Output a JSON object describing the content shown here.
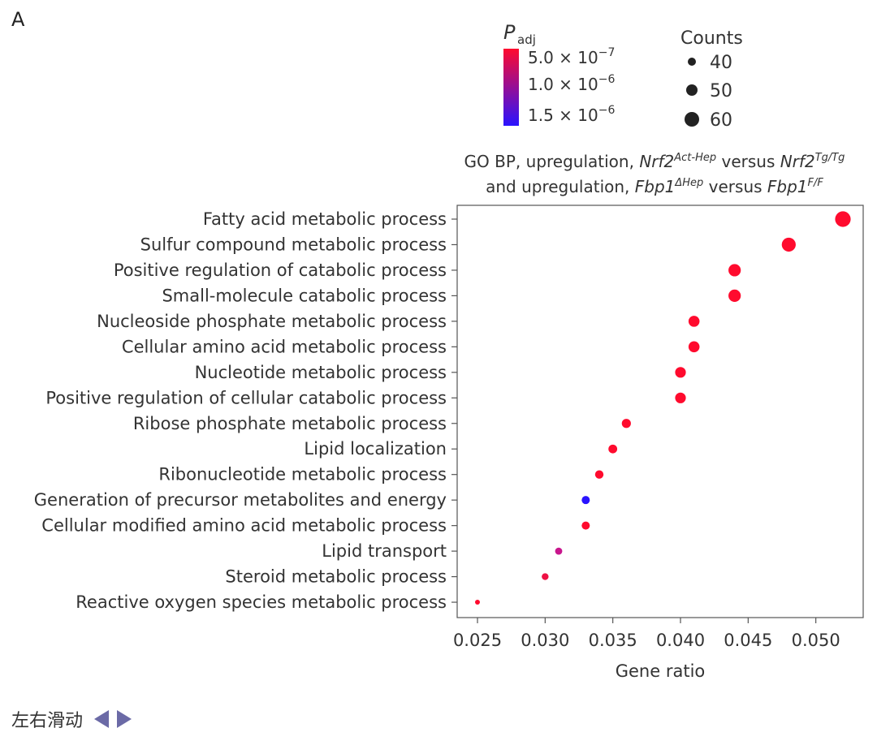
{
  "panel_label": "A",
  "footer": {
    "scroll_hint": "左右滑动"
  },
  "legend": {
    "color_title_main": "P",
    "color_title_sub": "adj",
    "color_entries": [
      {
        "mantissa": "5.0 × 10",
        "exp": "−7"
      },
      {
        "mantissa": "1.0 × 10",
        "exp": "−6"
      },
      {
        "mantissa": "1.5 × 10",
        "exp": "−6"
      }
    ],
    "color_high": "#ff0b2e",
    "color_low": "#2a13ff",
    "size_title": "Counts",
    "size_entries": [
      40,
      50,
      60
    ]
  },
  "chart_data": {
    "type": "scatter",
    "title_line1": [
      {
        "t": "GO BP, upregulation, ",
        "italic": false,
        "sup": false
      },
      {
        "t": "Nrf2",
        "italic": true,
        "sup": false
      },
      {
        "t": "Act-Hep",
        "italic": true,
        "sup": true
      },
      {
        "t": " versus ",
        "italic": false,
        "sup": false
      },
      {
        "t": "Nrf2",
        "italic": true,
        "sup": false
      },
      {
        "t": "Tg/Tg",
        "italic": true,
        "sup": true
      }
    ],
    "title_line2": [
      {
        "t": "and upregulation, ",
        "italic": false,
        "sup": false
      },
      {
        "t": "Fbp1",
        "italic": true,
        "sup": false
      },
      {
        "t": "ΔHep",
        "italic": true,
        "sup": true
      },
      {
        "t": " versus ",
        "italic": false,
        "sup": false
      },
      {
        "t": "Fbp1",
        "italic": true,
        "sup": false
      },
      {
        "t": "F/F",
        "italic": true,
        "sup": true
      }
    ],
    "xlabel": "Gene ratio",
    "xlim": [
      0.0235,
      0.0535
    ],
    "xticks": [
      0.025,
      0.03,
      0.035,
      0.04,
      0.045,
      0.05
    ],
    "xtick_labels": [
      "0.025",
      "0.030",
      "0.035",
      "0.040",
      "0.045",
      "0.050"
    ],
    "points": [
      {
        "term": "Fatty acid metabolic process",
        "ratio": 0.052,
        "count": 63,
        "color": "#ff0b2e"
      },
      {
        "term": "Sulfur compound metabolic process",
        "ratio": 0.048,
        "count": 58,
        "color": "#ff0b2e"
      },
      {
        "term": "Positive regulation of catabolic process",
        "ratio": 0.044,
        "count": 53,
        "color": "#ff0b2e"
      },
      {
        "term": "Small-molecule catabolic process",
        "ratio": 0.044,
        "count": 53,
        "color": "#ff0b2e"
      },
      {
        "term": "Nucleoside phosphate metabolic process",
        "ratio": 0.041,
        "count": 49,
        "color": "#ff0b2e"
      },
      {
        "term": "Cellular amino acid metabolic process",
        "ratio": 0.041,
        "count": 49,
        "color": "#ff0b2e"
      },
      {
        "term": "Nucleotide metabolic process",
        "ratio": 0.04,
        "count": 48,
        "color": "#ff0b2e"
      },
      {
        "term": "Positive regulation of cellular catabolic process",
        "ratio": 0.04,
        "count": 48,
        "color": "#ff0b2e"
      },
      {
        "term": "Ribose phosphate metabolic process",
        "ratio": 0.036,
        "count": 43,
        "color": "#ff0b2e"
      },
      {
        "term": "Lipid localization",
        "ratio": 0.035,
        "count": 42,
        "color": "#ff0b2e"
      },
      {
        "term": "Ribonucleotide metabolic process",
        "ratio": 0.034,
        "count": 41,
        "color": "#ff0b2e"
      },
      {
        "term": "Generation of precursor metabolites and energy",
        "ratio": 0.033,
        "count": 40,
        "color": "#2a13ff"
      },
      {
        "term": "Cellular modified amino acid metabolic process",
        "ratio": 0.033,
        "count": 40,
        "color": "#ff0b2e"
      },
      {
        "term": "Lipid transport",
        "ratio": 0.031,
        "count": 37,
        "color": "#c8168d"
      },
      {
        "term": "Steroid metabolic process",
        "ratio": 0.03,
        "count": 36,
        "color": "#ee1144"
      },
      {
        "term": "Reactive oxygen species metabolic process",
        "ratio": 0.025,
        "count": 30,
        "color": "#ff0b2e"
      }
    ]
  }
}
